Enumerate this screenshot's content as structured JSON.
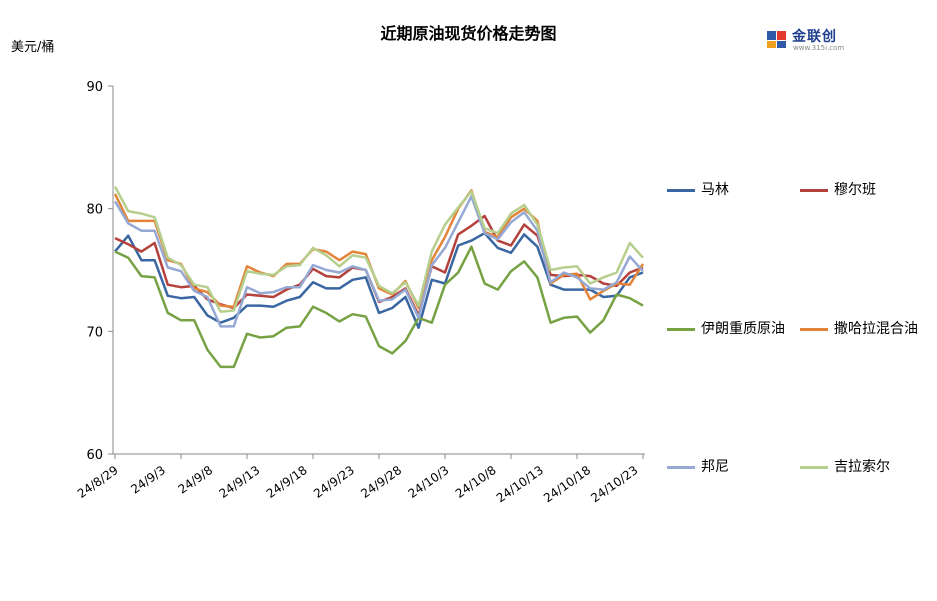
{
  "chart_data": {
    "type": "line",
    "title": "近期原油现货价格走势图",
    "ylabel": "美元/桶",
    "ylim": [
      60,
      90
    ],
    "yticks": [
      "60",
      "70",
      "80",
      "90"
    ],
    "xtick_labels": [
      "24/8/29",
      "24/9/3",
      "24/9/8",
      "24/9/13",
      "24/9/18",
      "24/9/23",
      "24/9/28",
      "24/10/3",
      "24/10/8",
      "24/10/13",
      "24/10/18",
      "24/10/23"
    ],
    "x": [
      "24/8/29",
      "24/8/30",
      "24/9/2",
      "24/9/3",
      "24/9/4",
      "24/9/5",
      "24/9/6",
      "24/9/9",
      "24/9/10",
      "24/9/11",
      "24/9/12",
      "24/9/13",
      "24/9/16",
      "24/9/17",
      "24/9/18",
      "24/9/19",
      "24/9/20",
      "24/9/23",
      "24/9/24",
      "24/9/25",
      "24/9/26",
      "24/9/27",
      "24/9/30",
      "24/10/1",
      "24/10/2",
      "24/10/3",
      "24/10/4",
      "24/10/7",
      "24/10/8",
      "24/10/9",
      "24/10/10",
      "24/10/11",
      "24/10/14",
      "24/10/15",
      "24/10/16",
      "24/10/17",
      "24/10/18",
      "24/10/21",
      "24/10/22",
      "24/10/23",
      "24/10/24"
    ],
    "grid": false,
    "legend_position": "right",
    "series": [
      {
        "name": "马林",
        "color": "#3a67a2",
        "values": [
          76.5,
          77.8,
          75.8,
          75.8,
          72.9,
          72.7,
          72.8,
          71.3,
          70.7,
          71.1,
          72.1,
          72.1,
          72.0,
          72.5,
          72.8,
          74.0,
          73.5,
          73.5,
          74.2,
          74.4,
          71.5,
          71.9,
          72.8,
          70.3,
          74.2,
          73.9,
          77.0,
          77.4,
          78.0,
          76.8,
          76.4,
          77.9,
          76.9,
          73.8,
          73.4,
          73.4,
          73.4,
          72.8,
          72.9,
          74.4,
          74.8
        ]
      },
      {
        "name": "穆尔班",
        "color": "#b5413d",
        "values": [
          77.6,
          77.1,
          76.5,
          77.2,
          73.8,
          73.6,
          73.7,
          72.6,
          72.2,
          71.9,
          73.0,
          72.9,
          72.8,
          73.4,
          73.8,
          75.1,
          74.5,
          74.4,
          75.2,
          75.0,
          72.4,
          72.8,
          73.5,
          71.3,
          75.3,
          74.8,
          77.9,
          78.6,
          79.4,
          77.4,
          77.0,
          78.7,
          77.8,
          74.6,
          74.5,
          74.6,
          74.5,
          73.9,
          73.7,
          74.8,
          75.2
        ]
      },
      {
        "name": "伊朗重质原油",
        "color": "#77a244",
        "values": [
          76.5,
          76.0,
          74.5,
          74.4,
          71.5,
          70.9,
          70.9,
          68.5,
          67.1,
          67.1,
          69.8,
          69.5,
          69.6,
          70.3,
          70.4,
          72.0,
          71.5,
          70.8,
          71.4,
          71.2,
          68.8,
          68.2,
          69.2,
          71.1,
          70.7,
          73.8,
          74.8,
          76.9,
          73.9,
          73.4,
          74.9,
          75.7,
          74.4,
          70.7,
          71.1,
          71.2,
          69.9,
          70.9,
          73.0,
          72.7,
          72.1
        ]
      },
      {
        "name": "撒哈拉混合油",
        "color": "#e2853b",
        "values": [
          81.2,
          79.0,
          79.0,
          79.0,
          75.8,
          75.5,
          73.5,
          73.2,
          72.1,
          72.0,
          75.3,
          74.8,
          74.5,
          75.5,
          75.5,
          76.7,
          76.5,
          75.8,
          76.5,
          76.3,
          73.5,
          73.0,
          74.1,
          71.9,
          75.8,
          77.7,
          80.0,
          81.5,
          78.1,
          77.7,
          79.3,
          80.0,
          79.0,
          73.9,
          74.6,
          74.7,
          72.6,
          73.3,
          73.9,
          73.8,
          75.5
        ]
      },
      {
        "name": "邦尼",
        "color": "#95a9d4",
        "values": [
          80.6,
          78.8,
          78.2,
          78.2,
          75.2,
          74.9,
          73.3,
          72.8,
          70.4,
          70.4,
          73.6,
          73.1,
          73.2,
          73.6,
          73.6,
          75.4,
          75.0,
          74.8,
          75.3,
          75.0,
          72.5,
          72.6,
          73.4,
          71.1,
          75.4,
          76.8,
          78.9,
          81.0,
          78.0,
          77.5,
          78.9,
          79.7,
          78.2,
          74.0,
          74.8,
          74.4,
          73.5,
          73.4,
          74.0,
          76.1,
          74.9
        ]
      },
      {
        "name": "吉拉索尔",
        "color": "#b6cf8d",
        "values": [
          81.8,
          79.8,
          79.6,
          79.3,
          76.0,
          75.4,
          73.8,
          73.6,
          71.6,
          71.7,
          74.9,
          74.7,
          74.6,
          75.3,
          75.4,
          76.8,
          76.2,
          75.3,
          76.2,
          76.0,
          73.7,
          73.1,
          74.0,
          72.1,
          76.5,
          78.7,
          80.1,
          81.4,
          78.4,
          78.0,
          79.6,
          80.3,
          78.7,
          75.0,
          75.2,
          75.3,
          73.9,
          74.4,
          74.8,
          77.2,
          76.0
        ]
      }
    ]
  }
}
